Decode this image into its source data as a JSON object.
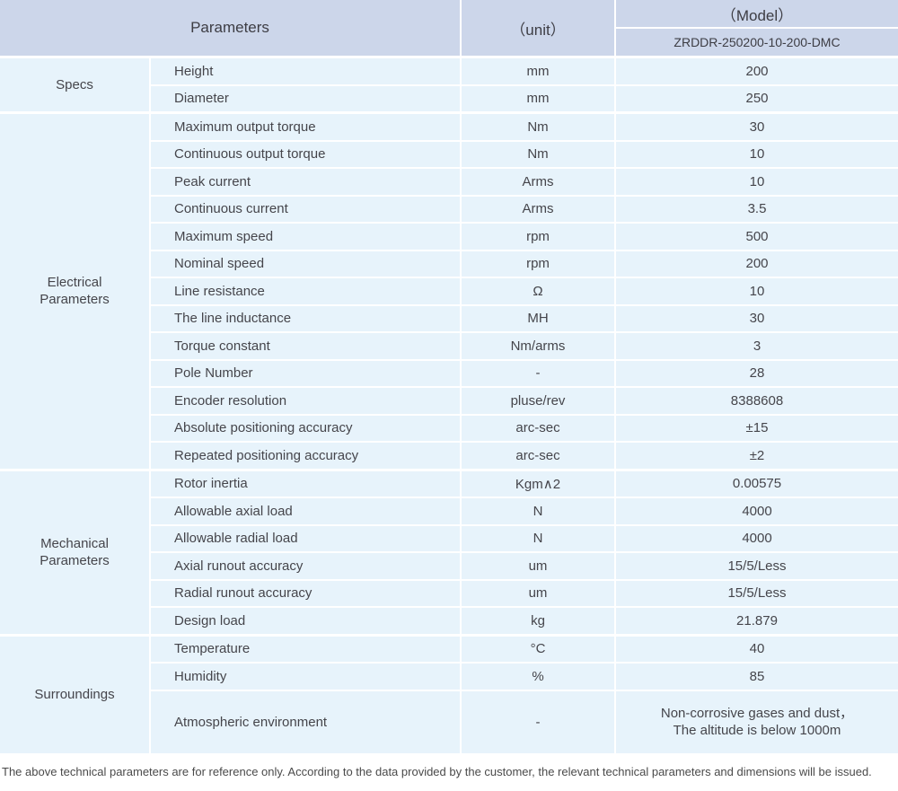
{
  "title_header": {
    "parameters": "Parameters",
    "unit": "（unit）",
    "model": "（Model）",
    "model_value": "ZRDDR-250200-10-200-DMC"
  },
  "sections": [
    {
      "label": "Specs",
      "rows": [
        {
          "name": "Height",
          "unit": "mm",
          "value": "200"
        },
        {
          "name": "Diameter",
          "unit": "mm",
          "value": "250"
        }
      ]
    },
    {
      "label": "Electrical Parameters",
      "rows": [
        {
          "name": "Maximum output torque",
          "unit": "Nm",
          "value": "30"
        },
        {
          "name": "Continuous output torque",
          "unit": "Nm",
          "value": "10"
        },
        {
          "name": "Peak current",
          "unit": "Arms",
          "value": "10"
        },
        {
          "name": "Continuous current",
          "unit": "Arms",
          "value": "3.5"
        },
        {
          "name": "Maximum speed",
          "unit": "rpm",
          "value": "500"
        },
        {
          "name": "Nominal speed",
          "unit": "rpm",
          "value": "200"
        },
        {
          "name": "Line resistance",
          "unit": "Ω",
          "value": "10"
        },
        {
          "name": "The line inductance",
          "unit": "MH",
          "value": "30"
        },
        {
          "name": "Torque constant",
          "unit": "Nm/arms",
          "value": "3"
        },
        {
          "name": "Pole Number",
          "unit": "-",
          "value": "28"
        },
        {
          "name": "Encoder resolution",
          "unit": "pluse/rev",
          "value": "8388608"
        },
        {
          "name": "Absolute positioning accuracy",
          "unit": "arc-sec",
          "value": "±15"
        },
        {
          "name": "Repeated positioning accuracy",
          "unit": "arc-sec",
          "value": "±2"
        }
      ]
    },
    {
      "label": "Mechanical Parameters",
      "rows": [
        {
          "name": "Rotor inertia",
          "unit": "Kgm∧2",
          "value": "0.00575"
        },
        {
          "name": "Allowable axial load",
          "unit": "N",
          "value": "4000"
        },
        {
          "name": "Allowable radial load",
          "unit": "N",
          "value": "4000"
        },
        {
          "name": "Axial runout accuracy",
          "unit": "um",
          "value": "15/5/Less"
        },
        {
          "name": "Radial runout accuracy",
          "unit": "um",
          "value": "15/5/Less"
        },
        {
          "name": "Design load",
          "unit": "kg",
          "value": "21.879"
        }
      ]
    },
    {
      "label": "Surroundings",
      "rows": [
        {
          "name": "Temperature",
          "unit": "°C",
          "value": "40"
        },
        {
          "name": "Humidity",
          "unit": "%",
          "value": "85"
        },
        {
          "name": "Atmospheric environment",
          "unit": "-",
          "value": "Non-corrosive gases and dust，\nThe altitude is below 1000m"
        }
      ]
    }
  ],
  "footer_note": "The above technical parameters are for reference only. According to the data provided by the customer, the relevant technical parameters and dimensions will be issued.",
  "colors": {
    "header_bg": "#ccd6ea",
    "cell_bg": "#e7f3fb",
    "text": "#45454b"
  }
}
